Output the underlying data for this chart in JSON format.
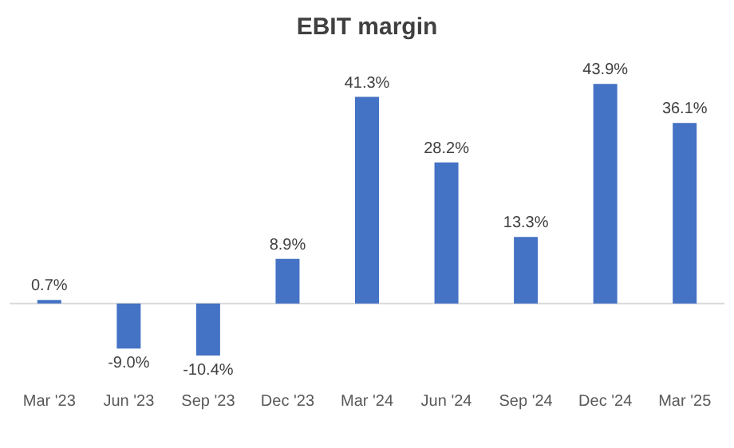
{
  "chart_data": {
    "type": "bar",
    "title": "EBIT margin",
    "categories": [
      "Mar '23",
      "Jun '23",
      "Sep '23",
      "Dec '23",
      "Mar '24",
      "Jun '24",
      "Sep '24",
      "Dec '24",
      "Mar '25"
    ],
    "values": [
      0.7,
      -9.0,
      -10.4,
      8.9,
      41.3,
      28.2,
      13.3,
      43.9,
      36.1
    ],
    "value_labels": [
      "0.7%",
      "-9.0%",
      "-10.4%",
      "8.9%",
      "41.3%",
      "28.2%",
      "13.3%",
      "43.9%",
      "36.1%"
    ],
    "color": "#4472c4"
  }
}
